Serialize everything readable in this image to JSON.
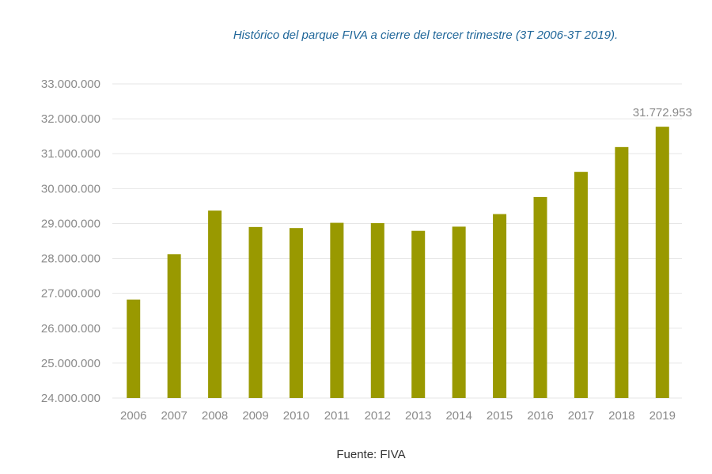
{
  "chart_data": {
    "type": "bar",
    "title": "Histórico del parque FIVA a cierre del tercer trimestre (3T 2006-3T 2019).",
    "source": "Fuente: FIVA",
    "categories": [
      "2006",
      "2007",
      "2008",
      "2009",
      "2010",
      "2011",
      "2012",
      "2013",
      "2014",
      "2015",
      "2016",
      "2017",
      "2018",
      "2019"
    ],
    "values": [
      26820000,
      28120000,
      29370000,
      28900000,
      28870000,
      29020000,
      29010000,
      28790000,
      28910000,
      29270000,
      29760000,
      30480000,
      31190000,
      31772953
    ],
    "data_labels": [
      null,
      null,
      null,
      null,
      null,
      null,
      null,
      null,
      null,
      null,
      null,
      null,
      null,
      "31.772.953"
    ],
    "ylim": [
      24000000,
      33000000
    ],
    "ytick_values": [
      24000000,
      25000000,
      26000000,
      27000000,
      28000000,
      29000000,
      30000000,
      31000000,
      32000000,
      33000000
    ],
    "ytick_labels": [
      "24.000.000",
      "25.000.000",
      "26.000.000",
      "27.000.000",
      "28.000.000",
      "29.000.000",
      "30.000.000",
      "31.000.000",
      "32.000.000",
      "33.000.000"
    ],
    "xlabel": "",
    "ylabel": "",
    "grid": true,
    "bar_color": "#999900",
    "grid_color": "#e6e6e6"
  }
}
